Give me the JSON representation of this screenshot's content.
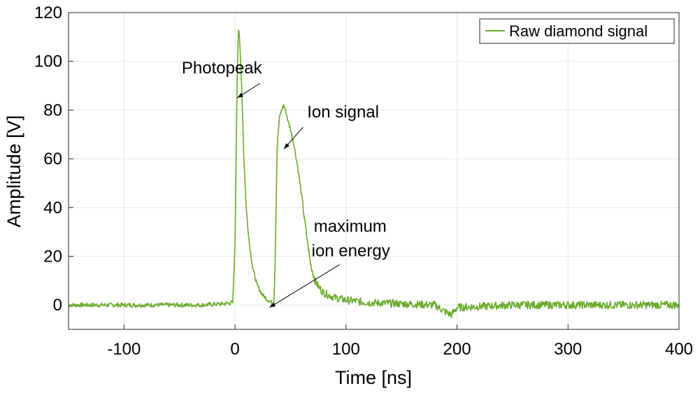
{
  "chart_data": {
    "type": "line",
    "title": "",
    "xlabel": "Time [ns]",
    "ylabel": "Amplitude [V]",
    "xlim": [
      -150,
      400
    ],
    "ylim": [
      -10,
      120
    ],
    "xticks": [
      -100,
      0,
      100,
      200,
      300,
      400
    ],
    "yticks": [
      0,
      20,
      40,
      60,
      80,
      100,
      120
    ],
    "grid": true,
    "legend_position": "top-right",
    "series": [
      {
        "name": "Raw diamond signal",
        "color": "#6aaa2a",
        "x": [
          -150,
          -30,
          -10,
          -2,
          0,
          2,
          3,
          4,
          6,
          8,
          10,
          13,
          16,
          20,
          25,
          30,
          33,
          35,
          36,
          37,
          38,
          40,
          42,
          44,
          46,
          48,
          50,
          53,
          56,
          60,
          64,
          68,
          72,
          76,
          80,
          85,
          90,
          100,
          120,
          150,
          180,
          190,
          195,
          200,
          250,
          300,
          350,
          400
        ],
        "y": [
          0,
          0,
          0.5,
          1,
          25,
          95,
          113,
          110,
          90,
          60,
          40,
          25,
          15,
          8,
          4,
          2,
          1,
          0,
          15,
          40,
          65,
          77,
          80,
          82,
          79,
          75,
          72,
          66,
          58,
          45,
          30,
          17,
          10,
          7,
          5,
          4,
          3,
          2,
          1,
          0.5,
          0,
          -3,
          -4,
          -1,
          0,
          0,
          0,
          0
        ]
      }
    ],
    "annotations": [
      {
        "text": "Photopeak",
        "x": -48,
        "y": 95,
        "arrow_to": [
          2,
          85
        ]
      },
      {
        "text": "Ion signal",
        "x": 65,
        "y": 77,
        "arrow_to": [
          44,
          64
        ]
      },
      {
        "text": "maximum",
        "x": 71,
        "y": 30
      },
      {
        "text": "ion energy",
        "x": 69,
        "y": 20,
        "arrow_to": [
          31,
          -1
        ]
      }
    ]
  }
}
